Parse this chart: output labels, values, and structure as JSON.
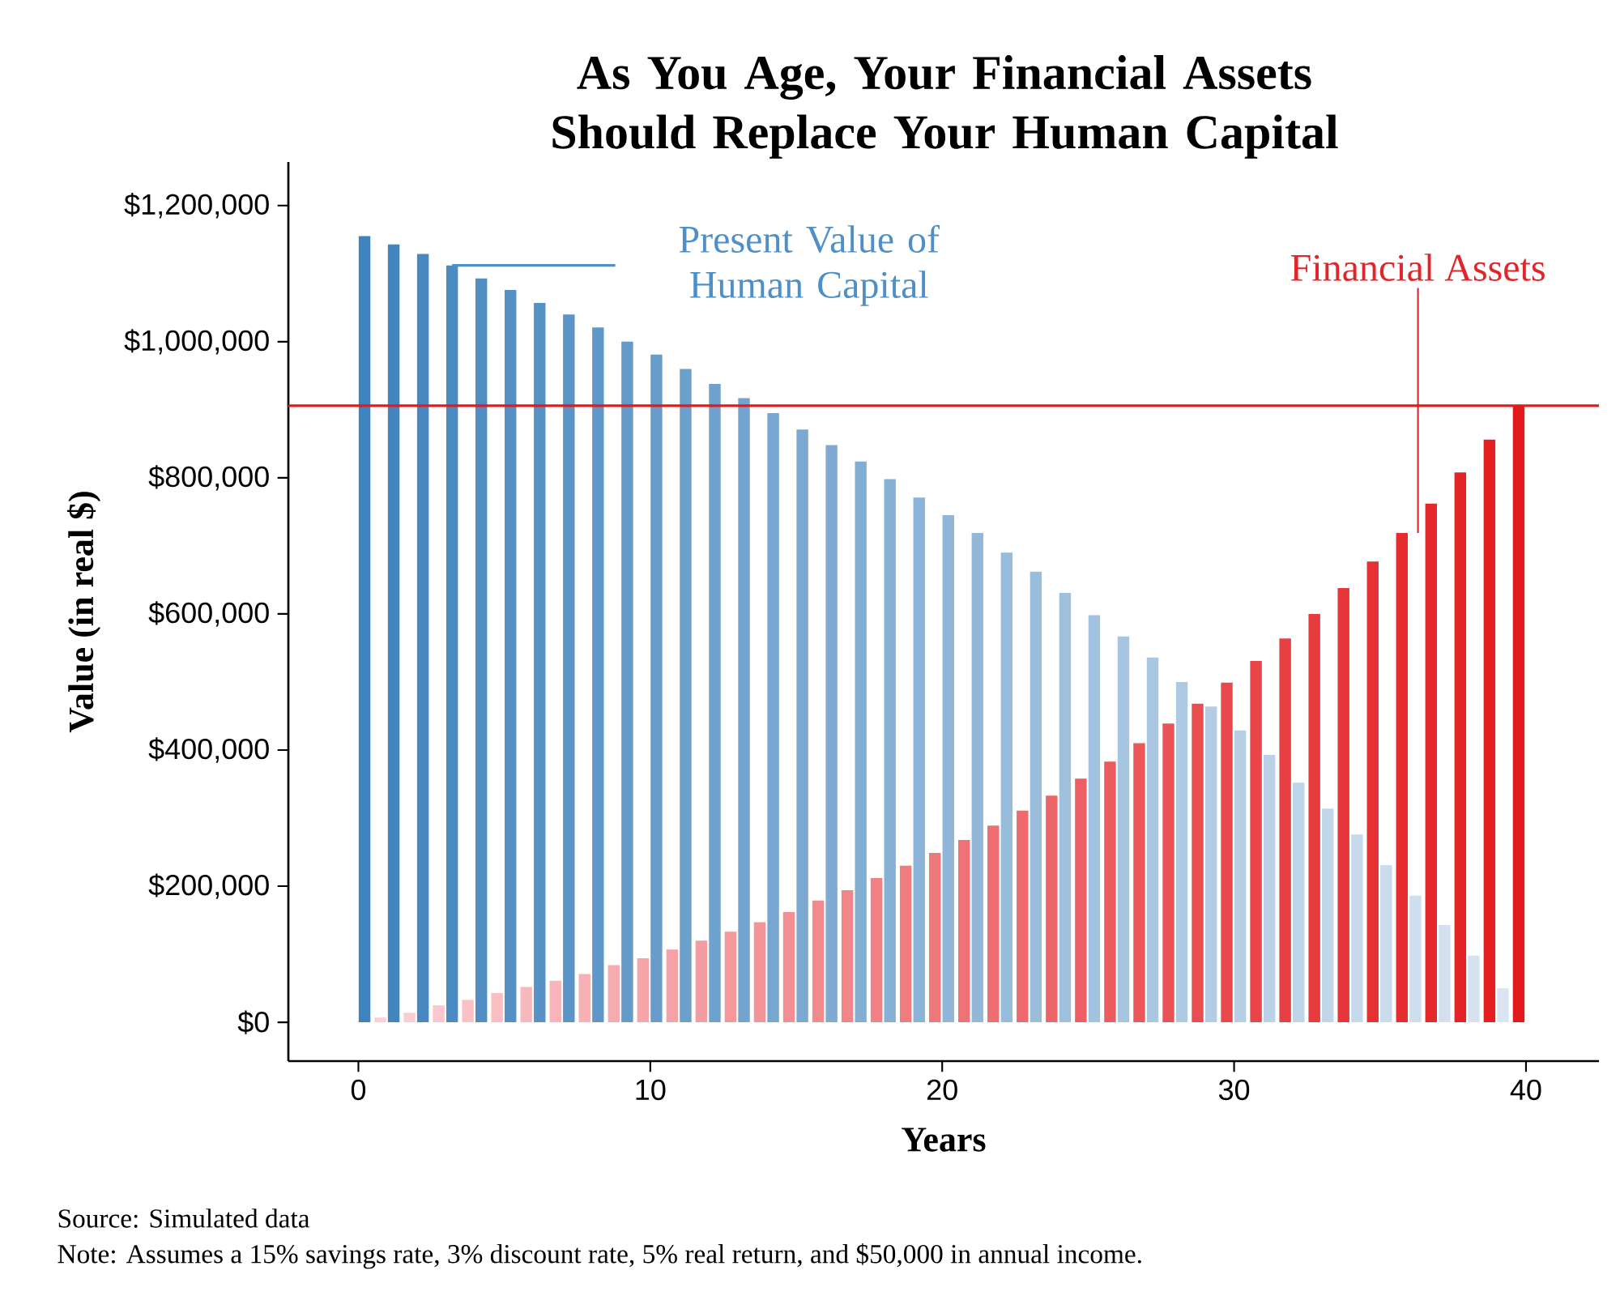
{
  "chart_data": {
    "type": "bar",
    "title": "As You Age, Your Financial Assets Should Replace Your Human Capital",
    "xlabel": "Years",
    "ylabel": "Value (in real $)",
    "x": [
      0,
      1,
      2,
      3,
      4,
      5,
      6,
      7,
      8,
      9,
      10,
      11,
      12,
      13,
      14,
      15,
      16,
      17,
      18,
      19,
      20,
      21,
      22,
      23,
      24,
      25,
      26,
      27,
      28,
      29,
      30,
      31,
      32,
      33,
      34,
      35,
      36,
      37,
      38,
      39,
      40
    ],
    "xlim": [
      -2.4,
      42.5
    ],
    "xticks": [
      0,
      10,
      20,
      30,
      40
    ],
    "ylim": [
      -57000,
      1264000
    ],
    "yticks": [
      {
        "value": 0,
        "label": "$0"
      },
      {
        "value": 200000,
        "label": "$200,000"
      },
      {
        "value": 400000,
        "label": "$400,000"
      },
      {
        "value": 600000,
        "label": "$600,000"
      },
      {
        "value": 800000,
        "label": "$800,000"
      },
      {
        "value": 1000000,
        "label": "$1,000,000"
      },
      {
        "value": 1200000,
        "label": "$1,200,000"
      }
    ],
    "series": [
      {
        "name": "Present Value of Human Capital",
        "color": "#4e8fc7",
        "values": [
          1155000,
          1143000,
          1129000,
          1112000,
          1093000,
          1076000,
          1057000,
          1040000,
          1021000,
          1000000,
          981000,
          960000,
          938000,
          917000,
          895000,
          871000,
          848000,
          824000,
          798000,
          771000,
          745000,
          719000,
          690000,
          662000,
          631000,
          598000,
          567000,
          536000,
          500000,
          464000,
          429000,
          393000,
          352000,
          314000,
          276000,
          231000,
          186000,
          143000,
          98000,
          50000,
          0
        ],
        "colors": [
          "#3f83be",
          "#4386bf",
          "#4788c1",
          "#4b8bc2",
          "#4f8dc3",
          "#5390c5",
          "#5792c6",
          "#5b95c7",
          "#5f97c8",
          "#639aca",
          "#679ccb",
          "#6b9fcc",
          "#6fa1ce",
          "#73a4cf",
          "#77a6d0",
          "#7ba9d2",
          "#7fabd3",
          "#83aed4",
          "#87b0d5",
          "#8bb3d7",
          "#8fb5d8",
          "#92b8d9",
          "#96bbdb",
          "#9abddc",
          "#9ec0dd",
          "#a2c2df",
          "#a6c5e0",
          "#aac7e1",
          "#aecae2",
          "#b2cce4",
          "#b6cfe5",
          "#bad1e6",
          "#bed4e8",
          "#c2d6e9",
          "#c6d9ea",
          "#cadbec",
          "#cedeed",
          "#d2e0ee",
          "#d6e3ef",
          "#dae5f1",
          "#dee8f2"
        ]
      },
      {
        "name": "Financial Assets",
        "color": "#e0262b",
        "values": [
          0,
          7000,
          14000,
          25000,
          33000,
          43000,
          52000,
          61000,
          71000,
          84000,
          94000,
          107000,
          120000,
          133000,
          147000,
          162000,
          179000,
          194000,
          212000,
          230000,
          249000,
          268000,
          289000,
          311000,
          333000,
          358000,
          383000,
          410000,
          439000,
          468000,
          499000,
          531000,
          564000,
          600000,
          638000,
          677000,
          719000,
          762000,
          808000,
          856000,
          906000
        ],
        "colors": [
          "#fcd5da",
          "#fbd0d5",
          "#fbccd1",
          "#fac7cc",
          "#fac2c7",
          "#f9bec2",
          "#f8b9be",
          "#f8b4b9",
          "#f7b0b4",
          "#f6abaf",
          "#f6a6ab",
          "#f5a2a6",
          "#f49da1",
          "#f4989c",
          "#f39498",
          "#f38f93",
          "#f28a8e",
          "#f18689",
          "#f18185",
          "#f07c80",
          "#f0787b",
          "#ef7376",
          "#ee6e71",
          "#ee696d",
          "#ed6568",
          "#ec6063",
          "#ec5b5f",
          "#eb575a",
          "#ea5255",
          "#ea4d50",
          "#e9494c",
          "#e94447",
          "#e83f42",
          "#e73b3d",
          "#e73639",
          "#e63134",
          "#e52d2f",
          "#e5282a",
          "#e42325",
          "#e41f21",
          "#e31a1c"
        ]
      }
    ],
    "ref_lines": [
      {
        "axis": "y",
        "value": 906000,
        "color": "#e31a1c"
      }
    ],
    "annotations": [
      "Source:  Simulated data",
      "Note:  Assumes a 15% savings rate, 3% discount rate, 5% real return, and $50,000 in annual income."
    ]
  }
}
